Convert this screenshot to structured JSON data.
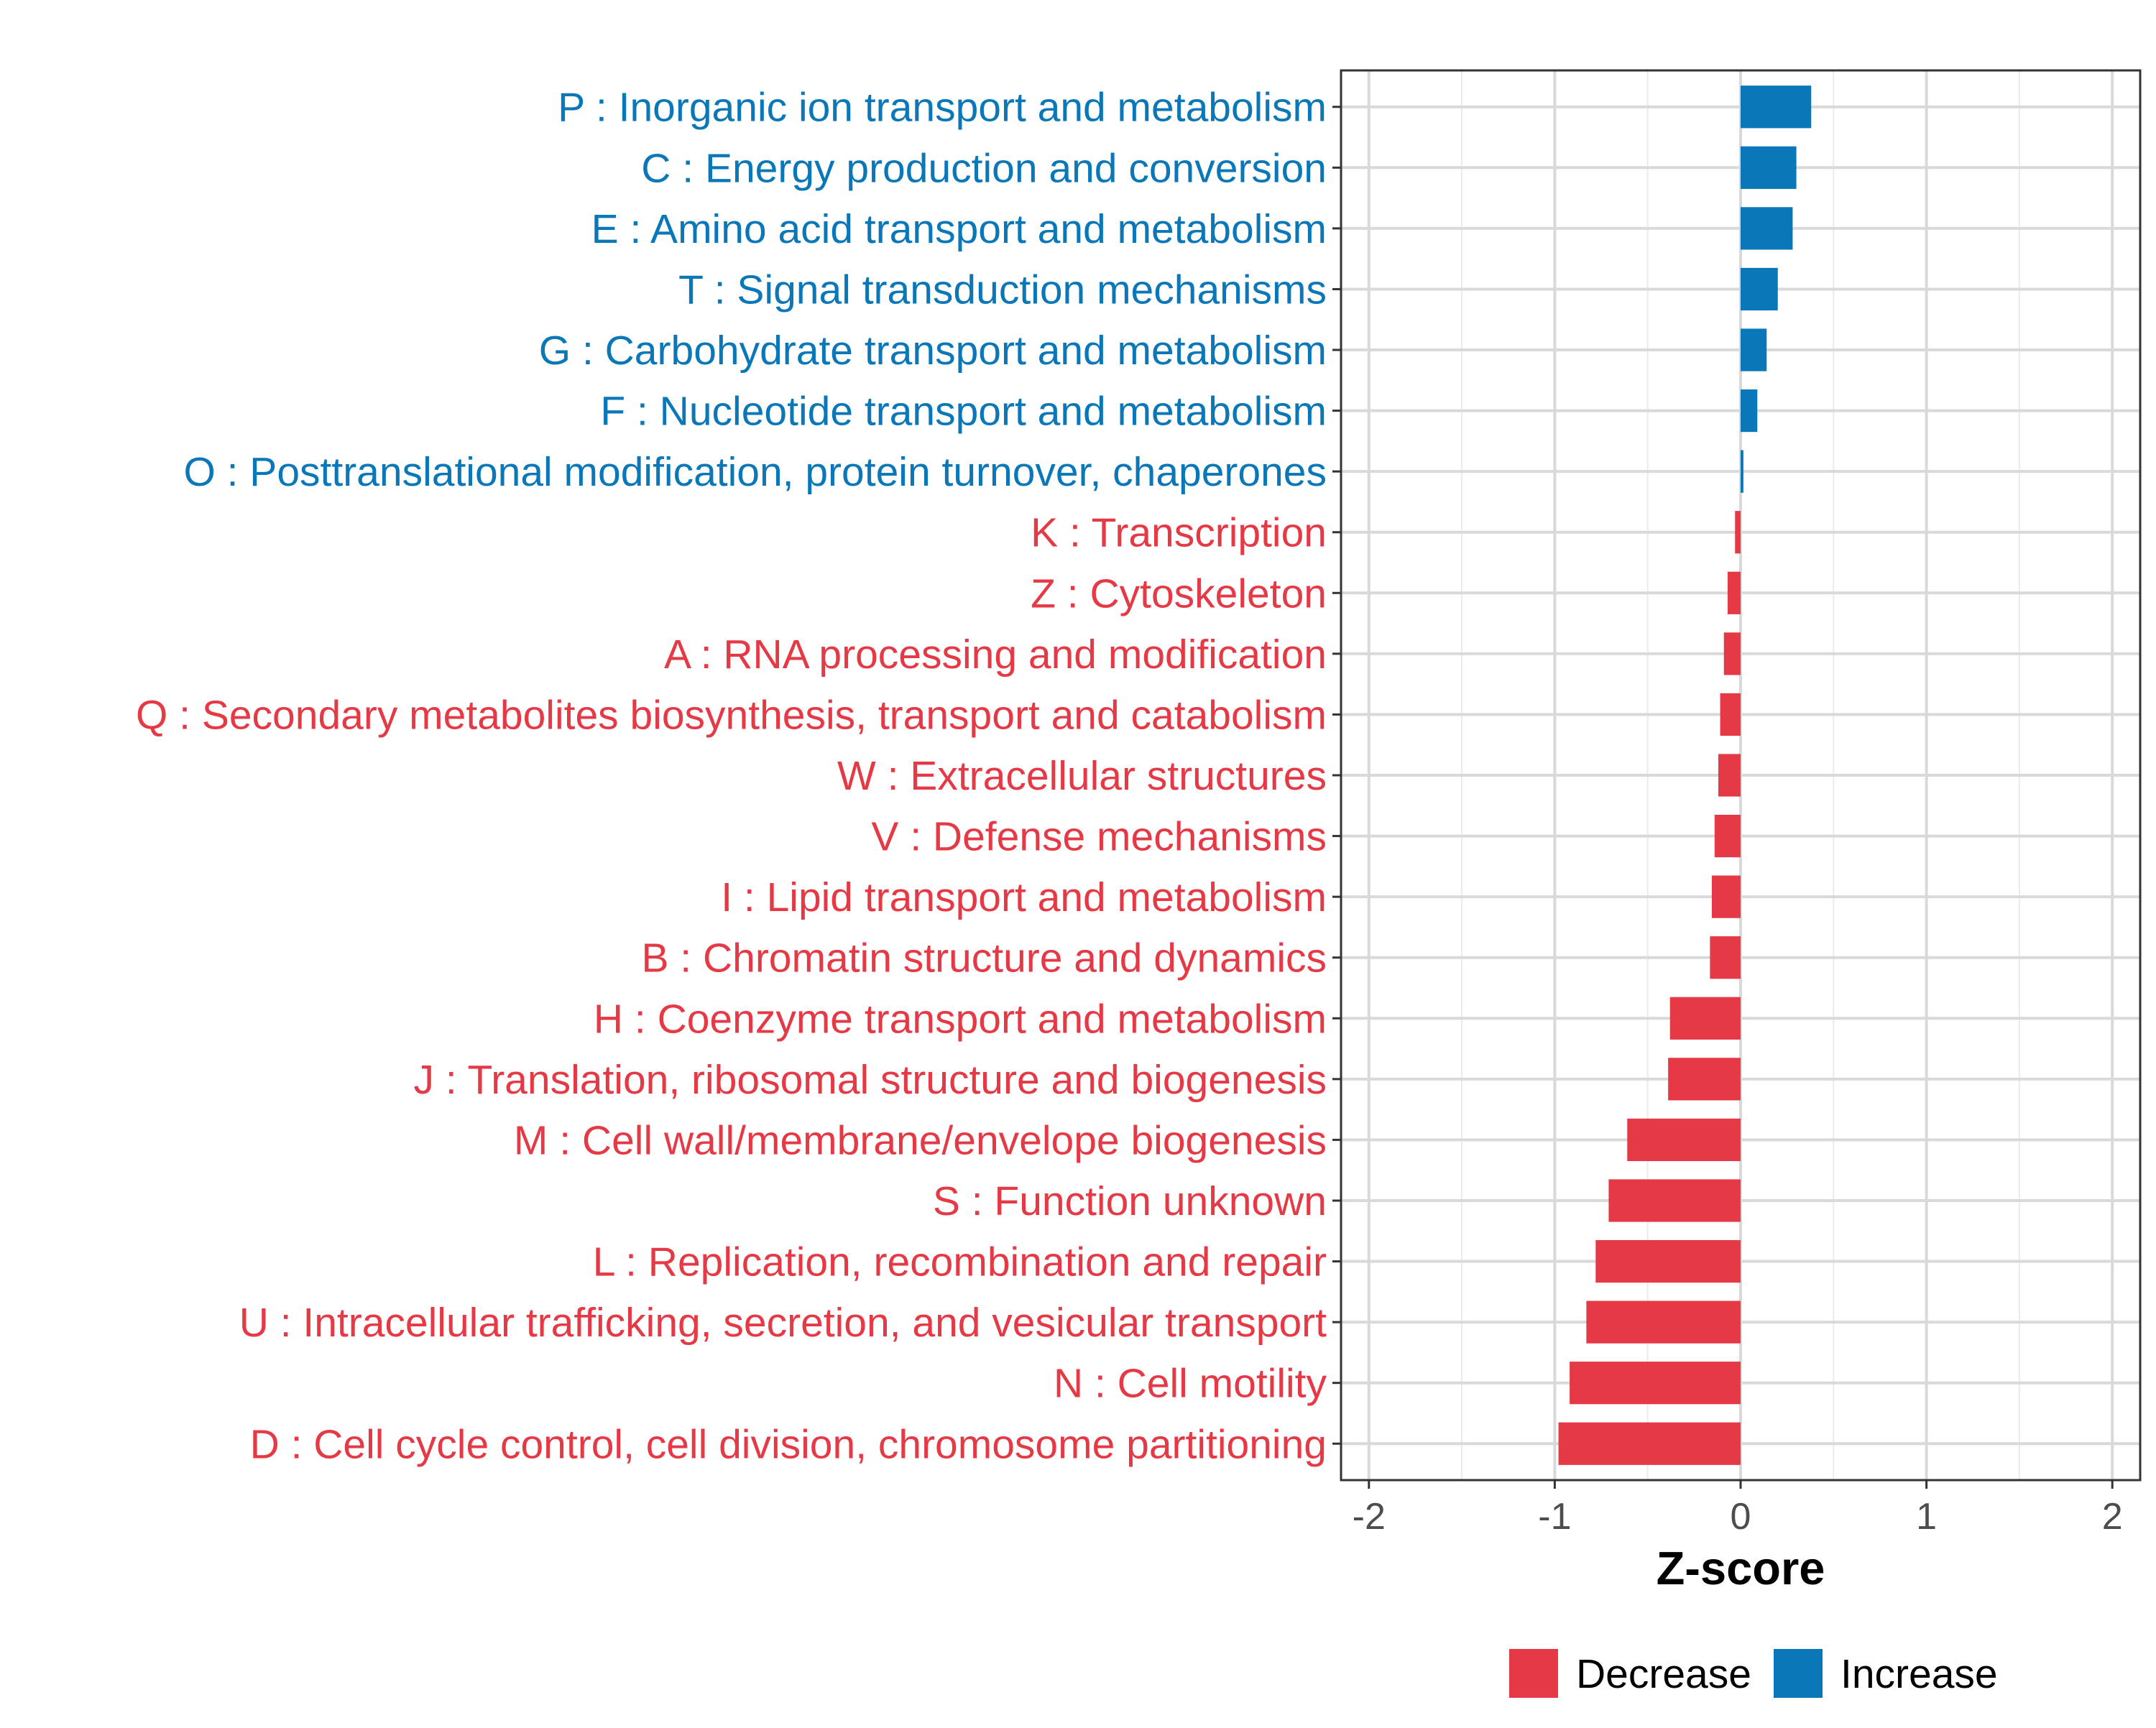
{
  "chart_data": {
    "type": "bar",
    "orientation": "horizontal",
    "xlabel": "Z-score",
    "ylabel": "",
    "xlim": [
      -2.15,
      2.15
    ],
    "xticks": [
      -2,
      -1,
      0,
      1,
      2
    ],
    "xtick_labels": [
      "-2",
      "-1",
      "0",
      "1",
      "2"
    ],
    "grid": true,
    "legend_position": "bottom",
    "colors": {
      "Decrease": "#e63946",
      "Increase": "#0a77b8"
    },
    "legend": [
      {
        "name": "Decrease",
        "color": "#e63946"
      },
      {
        "name": "Increase",
        "color": "#0a77b8"
      }
    ],
    "categories": [
      "P : Inorganic ion transport and metabolism",
      "C : Energy production and conversion",
      "E : Amino acid transport and metabolism",
      "T : Signal transduction mechanisms",
      "G : Carbohydrate transport and metabolism",
      "F : Nucleotide transport and metabolism",
      "O : Posttranslational modification, protein turnover, chaperones",
      "K : Transcription",
      "Z : Cytoskeleton",
      "A : RNA processing and modification",
      "Q : Secondary metabolites biosynthesis, transport and catabolism",
      "W : Extracellular structures",
      "V : Defense mechanisms",
      "I : Lipid transport and metabolism",
      "B : Chromatin structure and dynamics",
      "H : Coenzyme transport and metabolism",
      "J : Translation, ribosomal structure and biogenesis",
      "M : Cell wall/membrane/envelope biogenesis",
      "S : Function unknown",
      "L : Replication, recombination and repair",
      "U : Intracellular trafficking, secretion, and vesicular transport",
      "N : Cell motility",
      "D : Cell cycle control, cell division, chromosome partitioning"
    ],
    "values": [
      0.38,
      0.3,
      0.28,
      0.2,
      0.14,
      0.09,
      0.015,
      -0.03,
      -0.07,
      -0.09,
      -0.11,
      -0.12,
      -0.14,
      -0.155,
      -0.165,
      -0.38,
      -0.39,
      -0.61,
      -0.71,
      -0.78,
      -0.83,
      -0.92,
      -0.98
    ],
    "groups": [
      "Increase",
      "Increase",
      "Increase",
      "Increase",
      "Increase",
      "Increase",
      "Increase",
      "Decrease",
      "Decrease",
      "Decrease",
      "Decrease",
      "Decrease",
      "Decrease",
      "Decrease",
      "Decrease",
      "Decrease",
      "Decrease",
      "Decrease",
      "Decrease",
      "Decrease",
      "Decrease",
      "Decrease",
      "Decrease"
    ]
  }
}
